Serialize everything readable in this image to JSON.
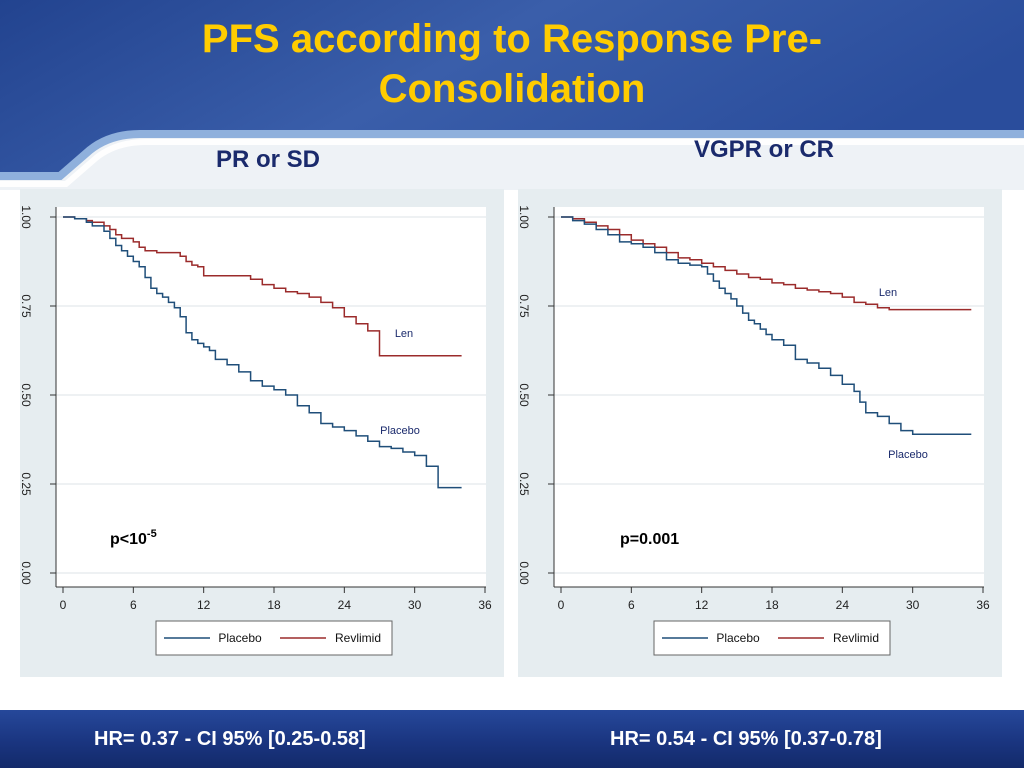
{
  "slide": {
    "title": "PFS according to Response Pre-Consolidation",
    "title_line1": "PFS according to Response Pre-",
    "title_line2": "Consolidation",
    "colors": {
      "title": "#ffcc00",
      "panel_title": "#1a2a6c",
      "header_blue": "#2a4a96",
      "footer_blue": "#1a3580",
      "placebo": "#1f4e79",
      "revlimid": "#9b2b2b",
      "plot_bg": "#e6edf0"
    }
  },
  "footer": {
    "left": "HR= 0.37  - CI 95% [0.25-0.58]",
    "right": "HR= 0.54  - CI 95% [0.37-0.78]"
  },
  "chart_data": [
    {
      "type": "line",
      "step": true,
      "title": "PR or SD",
      "xlim": [
        0,
        36
      ],
      "ylim": [
        0,
        1
      ],
      "xticks": [
        "0",
        "6",
        "12",
        "18",
        "24",
        "30",
        "36"
      ],
      "yticks": [
        "0.00",
        "0.25",
        "0.50",
        "0.75",
        "1.00"
      ],
      "grid": "horizontal",
      "legend": [
        "Placebo",
        "Revlimid"
      ],
      "legend_position": "bottom",
      "annotation": {
        "prefix": "p<10",
        "sup": "-5"
      },
      "series": [
        {
          "name": "Revlimid",
          "label": "Len",
          "color": "#9b2b2b",
          "x": [
            0,
            1,
            2,
            2.5,
            3.5,
            4,
            4.5,
            5,
            6,
            6.5,
            7,
            8,
            10,
            10.5,
            11,
            11.5,
            12,
            16,
            17,
            18,
            19,
            20,
            21,
            22,
            23,
            24,
            25,
            26,
            27,
            30,
            34
          ],
          "y": [
            1,
            0.995,
            0.99,
            0.985,
            0.975,
            0.965,
            0.95,
            0.94,
            0.93,
            0.915,
            0.905,
            0.9,
            0.89,
            0.875,
            0.865,
            0.86,
            0.835,
            0.825,
            0.81,
            0.8,
            0.79,
            0.785,
            0.775,
            0.76,
            0.745,
            0.72,
            0.7,
            0.68,
            0.61,
            0.61,
            0.61
          ]
        },
        {
          "name": "Placebo",
          "label": "Placebo",
          "color": "#1f4e79",
          "x": [
            0,
            1,
            2,
            2.5,
            3.5,
            4,
            4.5,
            5,
            5.5,
            6,
            6.5,
            7,
            7.5,
            8,
            8.5,
            9,
            9.5,
            10,
            10.5,
            11,
            11.5,
            12,
            12.5,
            13,
            14,
            15,
            16,
            17,
            18,
            19,
            20,
            21,
            22,
            23,
            24,
            25,
            26,
            27,
            28,
            29,
            30,
            31,
            32,
            34
          ],
          "y": [
            1,
            0.995,
            0.985,
            0.975,
            0.96,
            0.94,
            0.92,
            0.905,
            0.89,
            0.875,
            0.86,
            0.83,
            0.8,
            0.785,
            0.775,
            0.76,
            0.745,
            0.72,
            0.675,
            0.655,
            0.645,
            0.635,
            0.625,
            0.6,
            0.585,
            0.565,
            0.54,
            0.525,
            0.515,
            0.5,
            0.47,
            0.45,
            0.42,
            0.41,
            0.4,
            0.385,
            0.37,
            0.355,
            0.35,
            0.34,
            0.33,
            0.3,
            0.24,
            0.24
          ]
        }
      ]
    },
    {
      "type": "line",
      "step": true,
      "title": "VGPR or CR",
      "xlim": [
        0,
        36
      ],
      "ylim": [
        0,
        1
      ],
      "xticks": [
        "0",
        "6",
        "12",
        "18",
        "24",
        "30",
        "36"
      ],
      "yticks": [
        "0.00",
        "0.25",
        "0.50",
        "0.75",
        "1.00"
      ],
      "grid": "horizontal",
      "legend": [
        "Placebo",
        "Revlimid"
      ],
      "legend_position": "bottom",
      "annotation": {
        "prefix": "p=0.001",
        "sup": ""
      },
      "series": [
        {
          "name": "Revlimid",
          "label": "Len",
          "color": "#9b2b2b",
          "x": [
            0,
            1,
            2,
            3,
            4,
            5,
            6,
            7,
            8,
            9,
            10,
            11,
            12,
            13,
            14,
            15,
            16,
            17,
            18,
            19,
            20,
            21,
            22,
            23,
            24,
            25,
            26,
            27,
            28,
            30,
            35
          ],
          "y": [
            1,
            0.995,
            0.985,
            0.975,
            0.965,
            0.95,
            0.935,
            0.925,
            0.915,
            0.9,
            0.885,
            0.88,
            0.87,
            0.86,
            0.85,
            0.84,
            0.83,
            0.825,
            0.815,
            0.81,
            0.8,
            0.795,
            0.79,
            0.785,
            0.775,
            0.76,
            0.755,
            0.745,
            0.74,
            0.74,
            0.74
          ]
        },
        {
          "name": "Placebo",
          "label": "Placebo",
          "color": "#1f4e79",
          "x": [
            0,
            1,
            2,
            3,
            4,
            5,
            6,
            7,
            8,
            9,
            10,
            11,
            12,
            12.5,
            13,
            13.5,
            14,
            14.5,
            15,
            15.5,
            16,
            16.5,
            17,
            17.5,
            18,
            19,
            20,
            21,
            22,
            23,
            24,
            25,
            25.5,
            26,
            27,
            28,
            29,
            30,
            35
          ],
          "y": [
            1,
            0.99,
            0.98,
            0.965,
            0.95,
            0.93,
            0.925,
            0.915,
            0.9,
            0.88,
            0.87,
            0.865,
            0.86,
            0.84,
            0.82,
            0.8,
            0.785,
            0.77,
            0.75,
            0.73,
            0.71,
            0.7,
            0.685,
            0.67,
            0.655,
            0.64,
            0.6,
            0.59,
            0.575,
            0.555,
            0.53,
            0.51,
            0.48,
            0.45,
            0.44,
            0.42,
            0.4,
            0.39,
            0.39
          ]
        }
      ]
    }
  ]
}
